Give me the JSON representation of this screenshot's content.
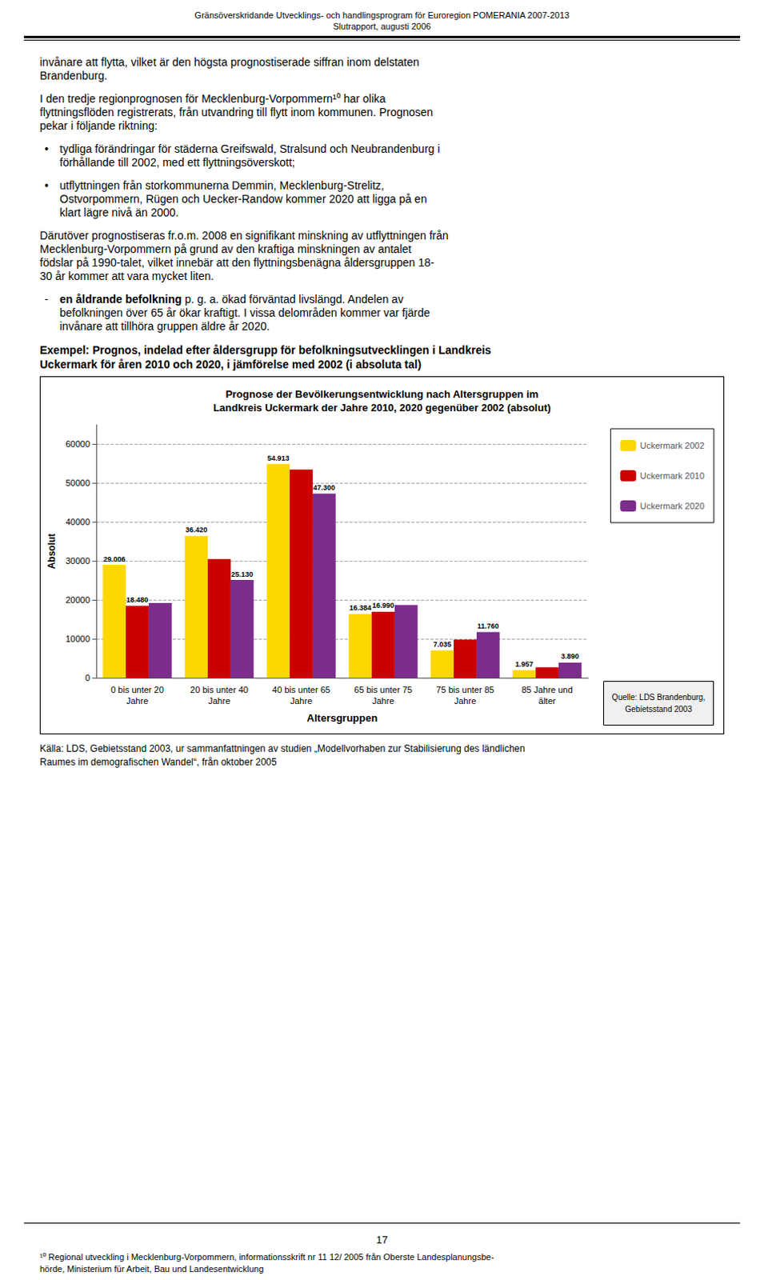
{
  "page": {
    "header": [
      "Gränsöverskridande Utvecklings- och handlingsprogram för Euroregion POMERANIA 2007-2013",
      "Slutrapport, augusti 2006"
    ],
    "body": [
      {
        "lines": [
          "invånare att flytta, vilket är den högsta prognostiserade siffran inom delstaten",
          "Brandenburg."
        ]
      },
      {
        "lines": [
          "I den tredje regionprognosen för Mecklenburg-Vorpommern¹⁰ har olika",
          "flyttningsflöden registrerats, från utvandring till flytt inom kommunen. Prognosen",
          "pekar i följande riktning:"
        ]
      },
      {
        "bullet": "•",
        "lines": [
          "tydliga förändringar för städerna Greifswald, Stralsund och Neubrandenburg i",
          "förhållande till 2002, med ett flyttningsöverskott;"
        ]
      },
      {
        "bullet": "•",
        "lines": [
          "utflyttningen från storkommunerna Demmin, Mecklenburg-Strelitz,",
          "Ostvorpommern, Rügen och Uecker-Randow kommer 2020 att ligga på en",
          "klart lägre nivå än 2000."
        ]
      },
      {
        "lines": [
          "Därutöver prognostiseras fr.o.m. 2008 en signifikant minskning av utflyttningen från",
          "Mecklenburg-Vorpommern på grund av den kraftiga minskningen av antalet",
          "födslar på 1990-talet, vilket innebär att den flyttningsbenägna åldersgruppen 18-",
          "30 år kommer att vara mycket liten."
        ]
      },
      {
        "bullet": "-",
        "bold": "en åldrande befolkning",
        "lines": [
          " p. g. a. ökad förväntad livslängd. Andelen av",
          "befolkningen över 65 år ökar kraftigt. I vissa delområden kommer var fjärde",
          "invånare att tillhöra gruppen äldre år 2020."
        ]
      },
      {
        "bold_lines": [
          "Exempel: Prognos, indelad efter åldersgrupp för befolkningsutvecklingen i Landkreis",
          "Uckermark för åren 2010 och 2020, i jämförelse med 2002 (i absoluta tal)"
        ]
      }
    ],
    "source": [
      "Källa: LDS, Gebietsstand 2003, ur sammanfattningen av studien „Modellvorhaben zur Stabilisierung des ländlichen",
      "Raumes im demografischen Wandel“, från oktober 2005"
    ],
    "page_number": "17",
    "footnote": [
      "¹⁰ Regional utveckling i Mecklenburg-Vorpommern, informationsskrift nr 11 12/ 2005 från Oberste Landesplanungsbe-",
      "hörde, Ministerium für Arbeit, Bau und Landesentwicklung"
    ]
  },
  "chart_data": {
    "type": "bar",
    "title": "Prognose der Bevölkerungsentwicklung nach Altersgruppen im\nLandkreis Uckermark der Jahre 2010, 2020 gegenüber 2002 (absolut)",
    "categories": [
      "0 bis unter 20\nJahre",
      "20 bis unter 40\nJahre",
      "40 bis unter 65\nJahre",
      "65 bis unter 75\nJahre",
      "75 bis unter 85\nJahre",
      "85 Jahre und\nälter"
    ],
    "series": [
      {
        "name": "Uckermark 2002",
        "color": "#FFD700",
        "values": [
          29006,
          36420,
          54913,
          16384,
          7035,
          1957
        ],
        "value_labels": [
          "29.006",
          "36.420",
          "54.913",
          "16.384",
          "7.035",
          "1.957"
        ]
      },
      {
        "name": "Uckermark 2010",
        "color": "#CC0000",
        "values": [
          18480,
          30500,
          53500,
          16990,
          9800,
          2700
        ],
        "value_labels": [
          "18.480",
          null,
          null,
          "16.990",
          null,
          null
        ]
      },
      {
        "name": "Uckermark 2020",
        "color": "#7B2D8B",
        "values": [
          19200,
          25130,
          47300,
          18700,
          11760,
          3890
        ],
        "value_labels": [
          null,
          "25.130",
          "47.300",
          null,
          "11.760",
          "3.890"
        ]
      }
    ],
    "xlabel": "Altersgruppen",
    "ylabel": "Absolut",
    "ylim": [
      0,
      65000
    ],
    "yticks": [
      0,
      10000,
      20000,
      30000,
      40000,
      50000,
      60000
    ],
    "grid": true,
    "legend": "right",
    "annotations": [
      "Quelle: LDS Brandenburg,\nGebietsstand 2003"
    ]
  }
}
